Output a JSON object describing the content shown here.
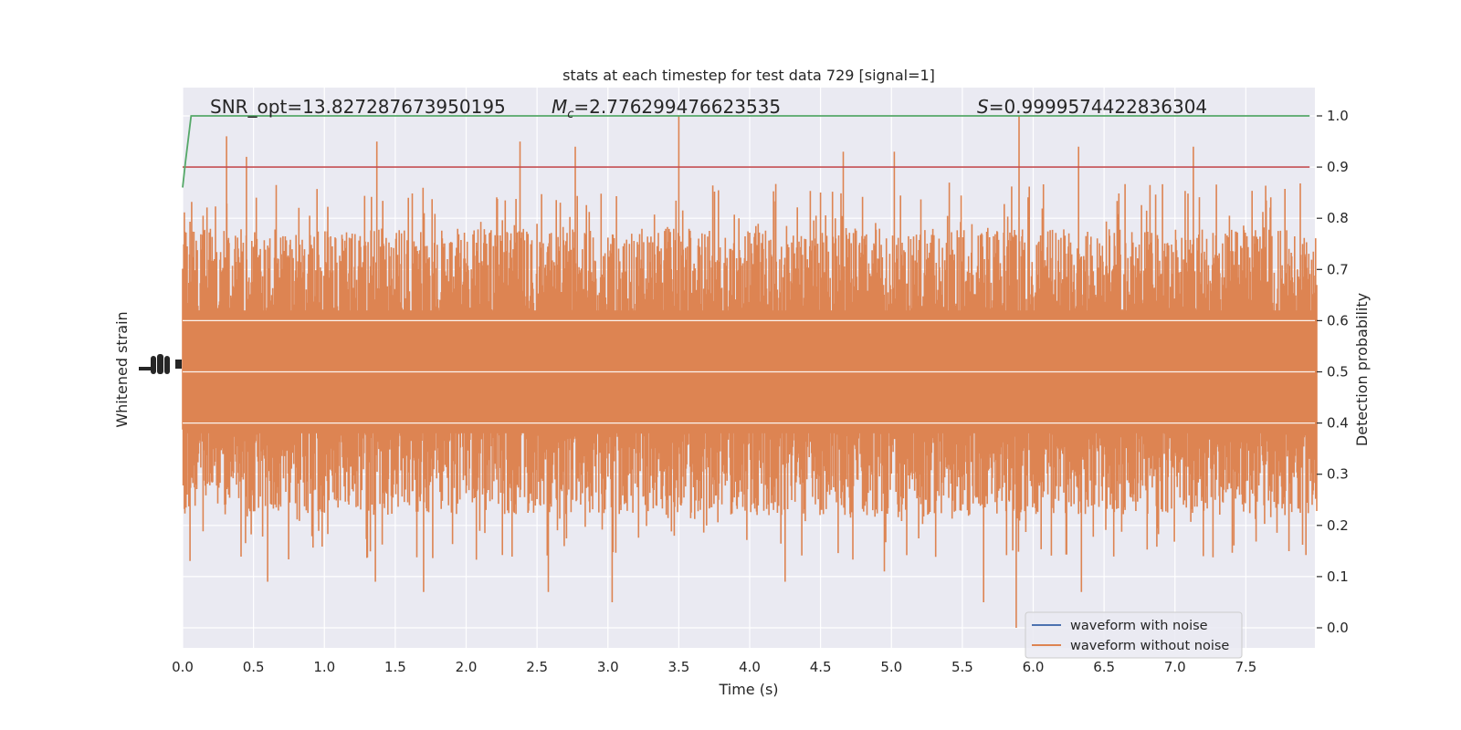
{
  "chart_data": {
    "type": "line",
    "title": "stats at each timestep for test data 729 [signal=1]",
    "xlabel": "Time (s)",
    "ylabel_left": "Whitened strain",
    "ylabel_right": "Detection probability",
    "xlim": [
      0.0,
      8.0
    ],
    "ylim_right": [
      -0.05,
      1.05
    ],
    "x_ticks": [
      "0.0",
      "0.5",
      "1.0",
      "1.5",
      "2.0",
      "2.5",
      "3.0",
      "3.5",
      "4.0",
      "4.5",
      "5.0",
      "5.5",
      "6.0",
      "6.5",
      "7.0",
      "7.5"
    ],
    "x_tick_values": [
      0.0,
      0.5,
      1.0,
      1.5,
      2.0,
      2.5,
      3.0,
      3.5,
      4.0,
      4.5,
      5.0,
      5.5,
      6.0,
      6.5,
      7.0,
      7.5
    ],
    "y_right_ticks": [
      "0.0",
      "0.1",
      "0.2",
      "0.3",
      "0.4",
      "0.5",
      "0.6",
      "0.7",
      "0.8",
      "0.9",
      "1.0"
    ],
    "y_right_tick_values": [
      0.0,
      0.1,
      0.2,
      0.3,
      0.4,
      0.5,
      0.6,
      0.7,
      0.8,
      0.9,
      1.0
    ],
    "grid": true,
    "legend_placement": "lower-right",
    "annotations": {
      "snr_prefix": "SNR_opt=",
      "snr_value": "13.827287673950195",
      "mc_symbol": "M",
      "mc_subscript": "c",
      "mc_value": "=2.776299476623535",
      "s_symbol": "S",
      "s_value": "=0.9999574422836304"
    },
    "threshold": {
      "value": 0.9,
      "color": "#c44e52"
    },
    "detection_probability": {
      "color": "#55a868",
      "x": [
        0.0,
        0.02,
        0.06,
        7.95
      ],
      "y": [
        0.86,
        0.91,
        1.0,
        1.0
      ]
    },
    "series": [
      {
        "name": "waveform with noise",
        "color": "#4c72b0"
      },
      {
        "name": "waveform without noise",
        "color": "#dd8452"
      }
    ],
    "noise_band": {
      "dense_range": [
        0.38,
        0.62
      ],
      "typical_range": [
        0.22,
        0.78
      ],
      "peak_tops": [
        {
          "x": 0.31,
          "y": 0.96
        },
        {
          "x": 0.45,
          "y": 0.92
        },
        {
          "x": 1.37,
          "y": 0.95
        },
        {
          "x": 2.38,
          "y": 0.95
        },
        {
          "x": 2.77,
          "y": 0.94
        },
        {
          "x": 3.5,
          "y": 1.0
        },
        {
          "x": 4.66,
          "y": 0.93
        },
        {
          "x": 5.02,
          "y": 0.93
        },
        {
          "x": 5.9,
          "y": 1.0
        },
        {
          "x": 6.32,
          "y": 0.94
        },
        {
          "x": 7.13,
          "y": 0.94
        }
      ],
      "trough_bottoms": [
        {
          "x": 1.7,
          "y": 0.07
        },
        {
          "x": 3.03,
          "y": 0.05
        },
        {
          "x": 5.65,
          "y": 0.05
        },
        {
          "x": 5.88,
          "y": 0.0
        },
        {
          "x": 0.6,
          "y": 0.09
        },
        {
          "x": 1.36,
          "y": 0.09
        },
        {
          "x": 2.58,
          "y": 0.07
        },
        {
          "x": 4.25,
          "y": 0.09
        },
        {
          "x": 6.34,
          "y": 0.07
        },
        {
          "x": 4.95,
          "y": 0.11
        },
        {
          "x": 7.2,
          "y": 0.14
        }
      ]
    }
  }
}
